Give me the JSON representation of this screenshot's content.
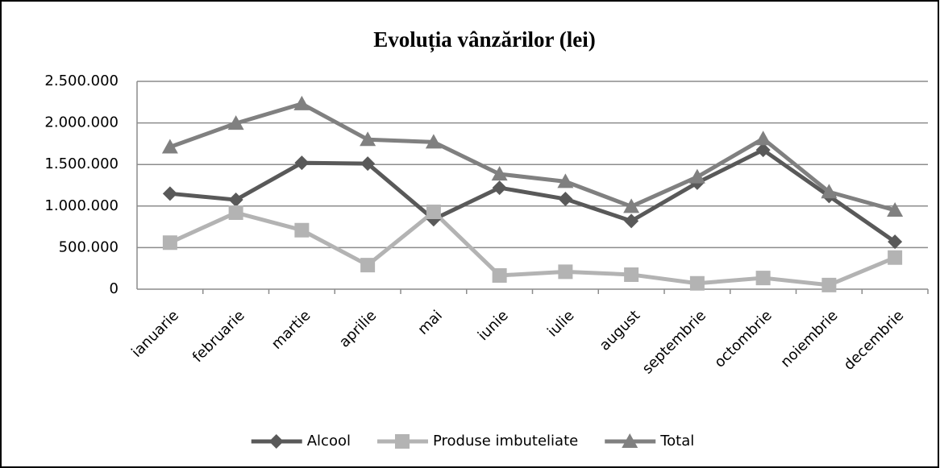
{
  "chart_data": {
    "type": "line",
    "title": "Evoluția vânzărilor (lei)",
    "categories": [
      "ianuarie",
      "februarie",
      "martie",
      "aprilie",
      "mai",
      "iunie",
      "iulie",
      "august",
      "septembrie",
      "octombrie",
      "noiembrie",
      "decembrie"
    ],
    "series": [
      {
        "name": "Alcool",
        "color": "#595959",
        "marker": "diamond",
        "values": [
          1150000,
          1075000,
          1520000,
          1510000,
          840000,
          1220000,
          1085000,
          820000,
          1280000,
          1675000,
          1120000,
          570000
        ]
      },
      {
        "name": "Produse imbuteliate",
        "color": "#b3b3b3",
        "marker": "square",
        "values": [
          560000,
          920000,
          710000,
          290000,
          930000,
          165000,
          210000,
          175000,
          70000,
          135000,
          50000,
          380000
        ]
      },
      {
        "name": "Total",
        "color": "#808080",
        "marker": "triangle",
        "values": [
          1710000,
          1995000,
          2230000,
          1800000,
          1770000,
          1385000,
          1295000,
          995000,
          1350000,
          1810000,
          1170000,
          950000
        ]
      }
    ],
    "ylim": [
      0,
      2500000
    ],
    "yticks": [
      0,
      {
        "value": 500000,
        "label": "500.000"
      },
      {
        "value": 1000000,
        "label": "1.000.000"
      },
      {
        "value": 1500000,
        "label": "1.500.000"
      },
      {
        "value": 2000000,
        "label": "2.000.000"
      },
      {
        "value": 2500000,
        "label": "2.500.000"
      }
    ],
    "grid": true,
    "legend": "bottom"
  }
}
